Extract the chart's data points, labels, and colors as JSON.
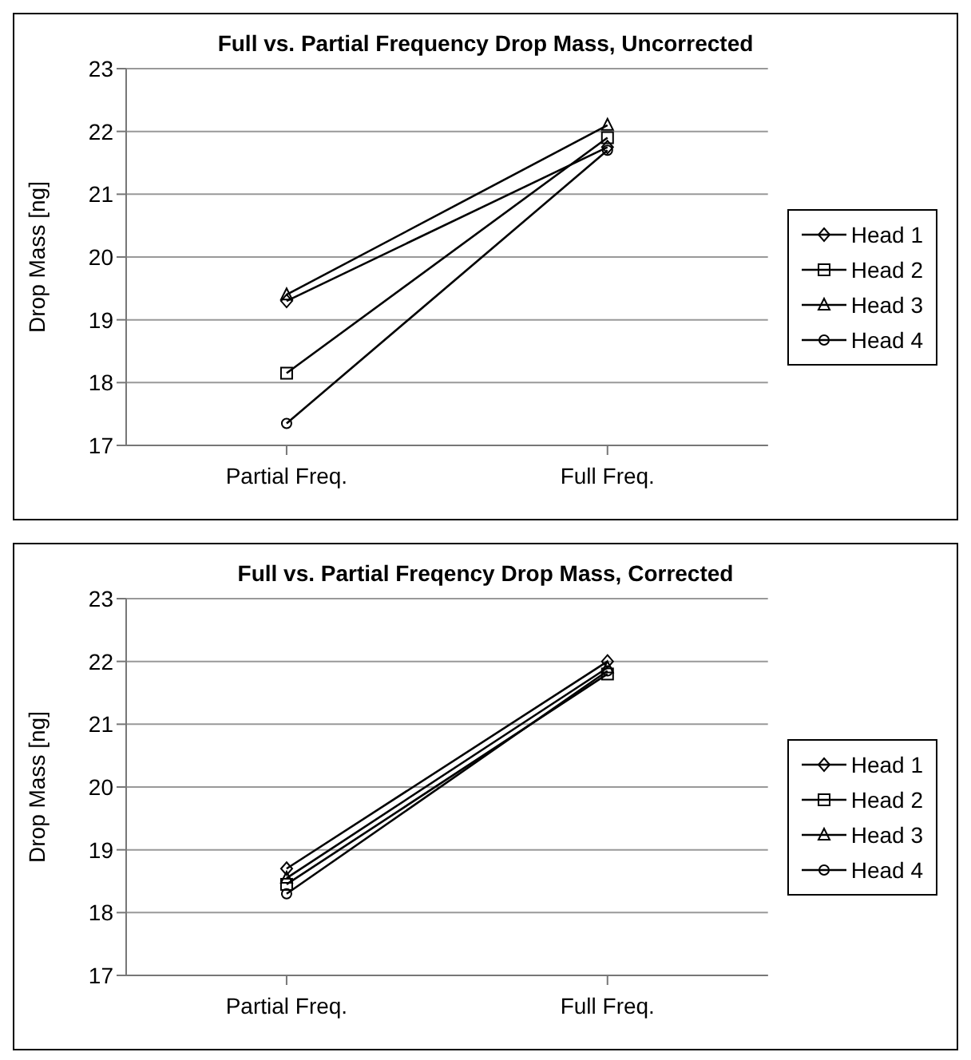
{
  "chart_data": [
    {
      "type": "line",
      "title": "Full vs. Partial Frequency Drop Mass, Uncorrected",
      "ylabel": "Drop Mass [ng]",
      "categories": [
        "Partial Freq.",
        "Full Freq."
      ],
      "series": [
        {
          "name": "Head 1",
          "color": "#000000",
          "marker": "diamond",
          "values": [
            19.3,
            21.75
          ]
        },
        {
          "name": "Head 2",
          "color": "#000000",
          "marker": "square",
          "values": [
            18.15,
            21.9
          ]
        },
        {
          "name": "Head 3",
          "color": "#000000",
          "marker": "triangle",
          "values": [
            19.4,
            22.1
          ]
        },
        {
          "name": "Head 4",
          "color": "#000000",
          "marker": "circle",
          "values": [
            17.35,
            21.7
          ]
        }
      ],
      "ylim": [
        17,
        23
      ],
      "yticks": [
        17,
        18,
        19,
        20,
        21,
        22,
        23
      ],
      "grid": "y",
      "legend": "right"
    },
    {
      "type": "line",
      "title": "Full vs. Partial Freqency Drop Mass, Corrected",
      "ylabel": "Drop Mass [ng]",
      "categories": [
        "Partial Freq.",
        "Full Freq."
      ],
      "series": [
        {
          "name": "Head 1",
          "color": "#000000",
          "marker": "diamond",
          "values": [
            18.7,
            22.0
          ]
        },
        {
          "name": "Head 2",
          "color": "#000000",
          "marker": "square",
          "values": [
            18.45,
            21.8
          ]
        },
        {
          "name": "Head 3",
          "color": "#000000",
          "marker": "triangle",
          "values": [
            18.55,
            21.9
          ]
        },
        {
          "name": "Head 4",
          "color": "#000000",
          "marker": "circle",
          "values": [
            18.3,
            21.85
          ]
        }
      ],
      "ylim": [
        17,
        23
      ],
      "yticks": [
        17,
        18,
        19,
        20,
        21,
        22,
        23
      ],
      "grid": "y",
      "legend": "right"
    }
  ]
}
